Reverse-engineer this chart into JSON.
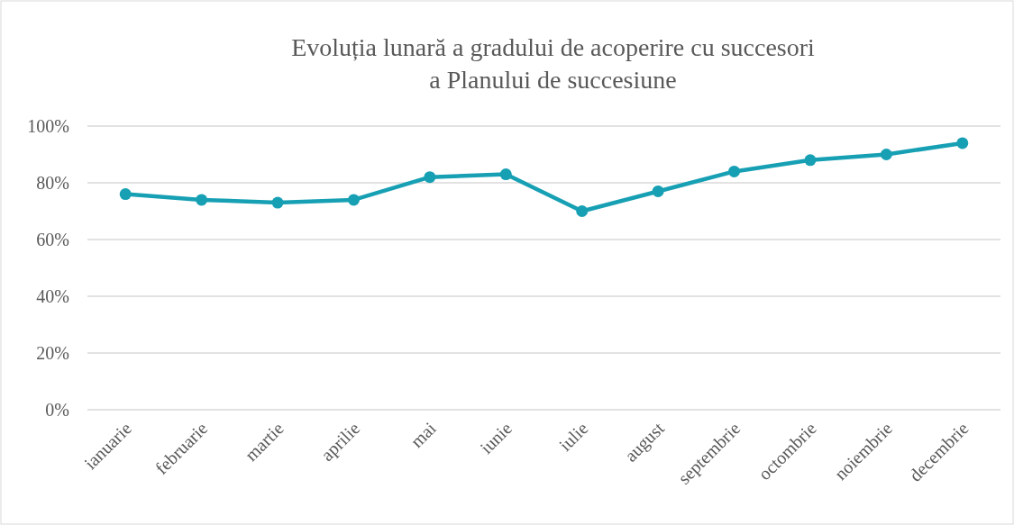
{
  "chart_data": {
    "type": "line",
    "title": "Evoluția lunară a gradului de acoperire cu succesori\na Planului de succesiune",
    "categories": [
      "ianuarie",
      "februarie",
      "martie",
      "aprilie",
      "mai",
      "iunie",
      "iulie",
      "august",
      "septembrie",
      "octombrie",
      "noiembrie",
      "decembrie"
    ],
    "series": [
      {
        "color": "#17a0b4",
        "values": [
          76,
          74,
          73,
          74,
          82,
          83,
          70,
          77,
          84,
          88,
          90,
          94
        ]
      }
    ],
    "ylim": [
      0,
      100
    ],
    "yticks": [
      {
        "value": 0,
        "label": "0%"
      },
      {
        "value": 20,
        "label": "20%"
      },
      {
        "value": 40,
        "label": "40%"
      },
      {
        "value": 60,
        "label": "60%"
      },
      {
        "value": 80,
        "label": "80%"
      },
      {
        "value": 100,
        "label": "100%"
      }
    ],
    "grid": "y",
    "marker": "circle",
    "line_style": "solid"
  }
}
